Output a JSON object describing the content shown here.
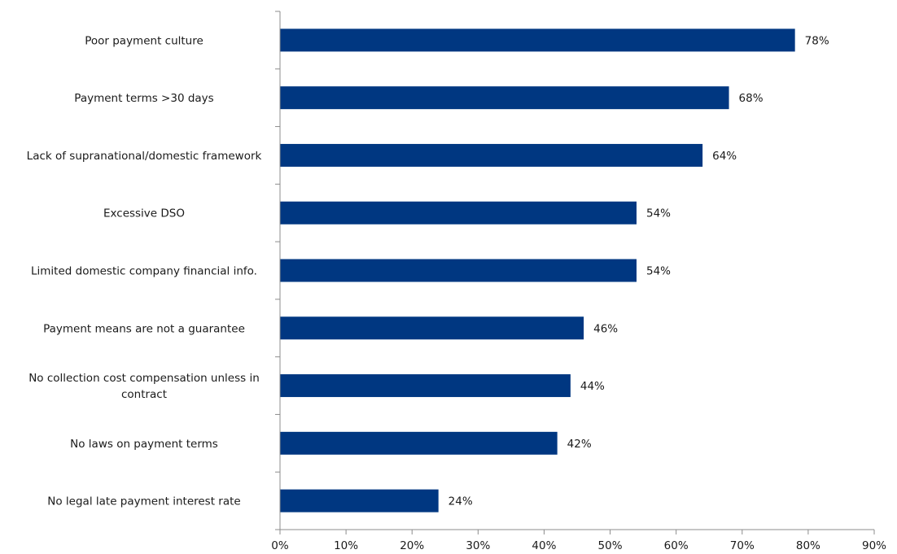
{
  "chart_data": {
    "type": "bar",
    "orientation": "horizontal",
    "title": "",
    "xlabel": "",
    "ylabel": "",
    "categories": [
      "Poor payment culture",
      "Payment terms >30 days",
      "Lack of supranational/domestic framework",
      "Excessive DSO",
      "Limited domestic company financial info.",
      "Payment means are not a guarantee",
      "No collection cost compensation unless in contract",
      "No laws on payment terms",
      "No legal late payment interest rate"
    ],
    "category_lines": [
      [
        "Poor payment culture"
      ],
      [
        "Payment terms >30 days"
      ],
      [
        "Lack of supranational/domestic framework"
      ],
      [
        "Excessive DSO"
      ],
      [
        "Limited domestic company financial info."
      ],
      [
        "Payment means are not a guarantee"
      ],
      [
        "No collection cost compensation unless in",
        "contract"
      ],
      [
        "No laws on payment terms"
      ],
      [
        "No legal late payment interest rate"
      ]
    ],
    "values": [
      78,
      68,
      64,
      54,
      54,
      46,
      44,
      42,
      24
    ],
    "value_labels": [
      "78%",
      "68%",
      "64%",
      "54%",
      "54%",
      "46%",
      "44%",
      "42%",
      "24%"
    ],
    "xlim": [
      0,
      90
    ],
    "x_ticks": [
      0,
      10,
      20,
      30,
      40,
      50,
      60,
      70,
      80,
      90
    ],
    "x_tick_labels": [
      "0%",
      "10%",
      "20%",
      "30%",
      "40%",
      "50%",
      "60%",
      "70%",
      "80%",
      "90%"
    ],
    "grid": false,
    "legend": "none",
    "bar_color": "#003781",
    "axis_color": "#8c8c8c"
  }
}
